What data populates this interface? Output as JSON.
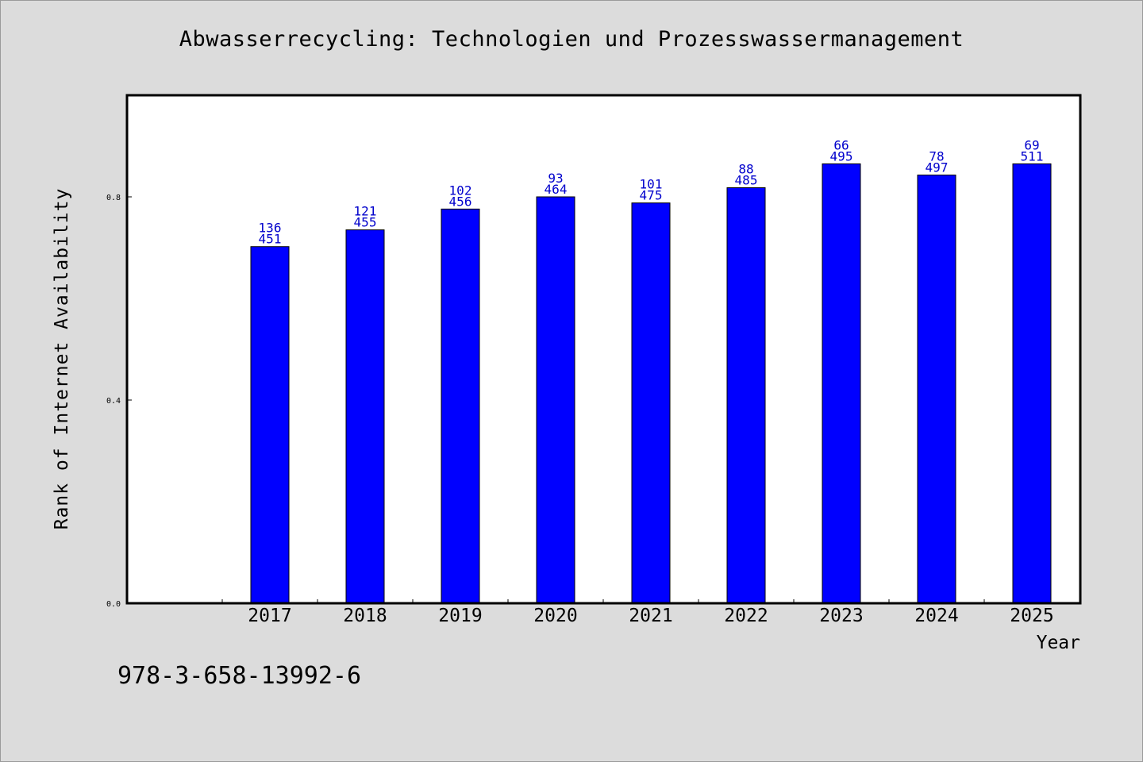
{
  "title": "Abwasserrecycling: Technologien und Prozesswassermanagement",
  "footer_code": "978-3-658-13992-6",
  "colors": {
    "background": "#dcdcdc",
    "plot_background": "#ffffff",
    "bar": "#0000ff",
    "bar_label": "#0000cc",
    "axis": "#000000"
  },
  "chart_data": {
    "type": "bar",
    "title": "Abwasserrecycling: Technologien und Prozesswassermanagement",
    "xlabel": "Year",
    "ylabel": "Rank of Internet Availability",
    "categories": [
      "2017",
      "2018",
      "2019",
      "2020",
      "2021",
      "2022",
      "2023",
      "2024",
      "2025"
    ],
    "values": [
      0.702,
      0.735,
      0.776,
      0.8,
      0.788,
      0.818,
      0.865,
      0.843,
      0.865
    ],
    "bar_labels_top": [
      "136",
      "121",
      "102",
      "93",
      "101",
      "88",
      "66",
      "78",
      "69"
    ],
    "bar_labels_bottom": [
      "451",
      "455",
      "456",
      "464",
      "475",
      "485",
      "495",
      "497",
      "511"
    ],
    "yticks": [
      0.0,
      0.4,
      0.8
    ],
    "ytick_labels": [
      "0.0",
      "0.4",
      "0.8"
    ],
    "ylim": [
      0,
      1.0
    ],
    "grid": false,
    "legend": "none"
  }
}
